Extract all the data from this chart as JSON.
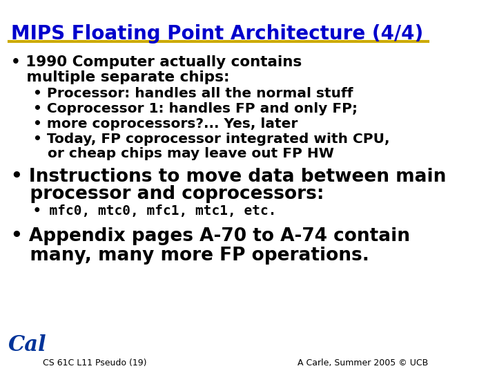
{
  "title": "MIPS Floating Point Architecture (4/4)",
  "title_color": "#0000CC",
  "title_fontsize": 20,
  "underline_color": "#CCAA00",
  "bg_color": "#FFFFFF",
  "body_color": "#000000",
  "footer_left": "CS 61C L11 Pseudo (19)",
  "footer_right": "A Carle, Summer 2005 © UCB",
  "footer_fontsize": 9,
  "bullet1_text1": "• 1990 Computer actually contains",
  "bullet1_text2": "   multiple separate chips:",
  "sub_bullet1": "• Processor: handles all the normal stuff",
  "sub_bullet2": "• Coprocessor 1: handles FP and only FP;",
  "sub_bullet3": "• more coprocessors?... Yes, later",
  "sub_bullet4a": "• Today, FP coprocessor integrated with CPU,",
  "sub_bullet4b": "   or cheap chips may leave out FP HW",
  "bullet2_text1": "• Instructions to move data between main",
  "bullet2_text2": "   processor and coprocessors:",
  "mono_bullet": "• mfc0, mtc0, mfc1, mtc1, etc.",
  "bullet3_text1": "• Appendix pages A-70 to A-74 contain",
  "bullet3_text2": "   many, many more FP operations.",
  "main_fontsize": 15.5,
  "sub_fontsize": 14.5,
  "mono_fontsize": 14,
  "large_fontsize": 19
}
